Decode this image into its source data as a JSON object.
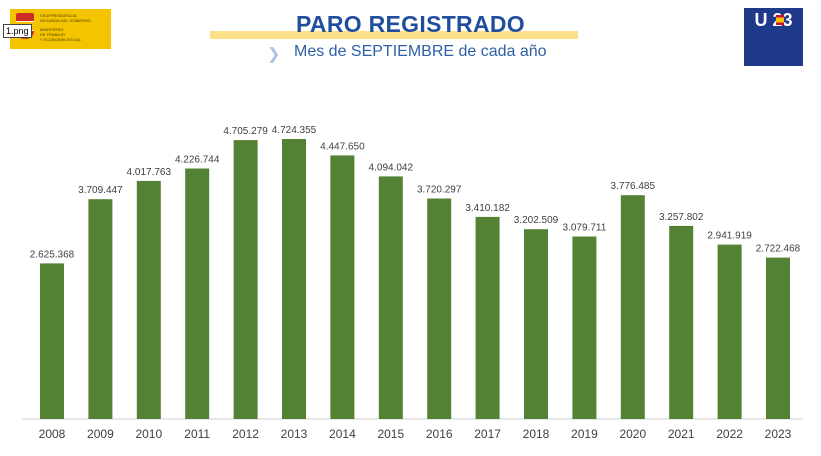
{
  "header": {
    "file_tag": "1.png",
    "title": "PARO REGISTRADO",
    "subtitle": "Mes de SEPTIEMBRE de cada año",
    "logo_left_lines": [
      "VICEPRESIDENCIA",
      "SEGUNDA DEL GOBIERNO",
      "MINISTERIO",
      "DE TRABAJO",
      "Y ECONOMÍA SOCIAL"
    ],
    "logo_right_text": "U 23"
  },
  "colors": {
    "bar": "#548235",
    "title": "#1f4e9c",
    "subtitle": "#2e5fa8"
  },
  "chart_data": {
    "type": "bar",
    "title": "PARO REGISTRADO",
    "subtitle": "Mes de SEPTIEMBRE de cada año",
    "categories": [
      "2008",
      "2009",
      "2010",
      "2011",
      "2012",
      "2013",
      "2014",
      "2015",
      "2016",
      "2017",
      "2018",
      "2019",
      "2020",
      "2021",
      "2022",
      "2023"
    ],
    "values": [
      2625368,
      3709447,
      4017763,
      4226744,
      4705279,
      4724355,
      4447650,
      4094042,
      3720297,
      3410182,
      3202509,
      3079711,
      3776485,
      3257802,
      2941919,
      2722468
    ],
    "data_labels": [
      "2.625.368",
      "3.709.447",
      "4.017.763",
      "4.226.744",
      "4.705.279",
      "4.724.355",
      "4.447.650",
      "4.094.042",
      "3.720.297",
      "3.410.182",
      "3.202.509",
      "3.079.711",
      "3.776.485",
      "3.257.802",
      "2.941.919",
      "2.722.468"
    ],
    "xlabel": "",
    "ylabel": "",
    "ylim": [
      0,
      4724355
    ],
    "grid": false,
    "legend": "none"
  }
}
